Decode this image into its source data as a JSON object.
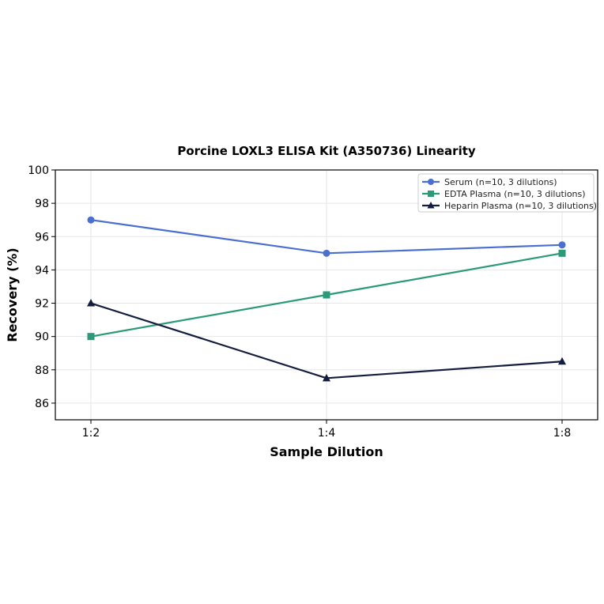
{
  "chart_data": {
    "type": "line",
    "title": "Porcine LOXL3 ELISA Kit (A350736) Linearity",
    "xlabel": "Sample Dilution",
    "ylabel": "Recovery (%)",
    "categories": [
      "1:2",
      "1:4",
      "1:8"
    ],
    "ylim": [
      85,
      100
    ],
    "yticks": [
      86,
      88,
      90,
      92,
      94,
      96,
      98,
      100
    ],
    "grid": true,
    "legend_position": "top-right",
    "series": [
      {
        "name": "Serum (n=10, 3 dilutions)",
        "values": [
          97,
          95,
          95.5
        ],
        "color": "#4a6fd0",
        "marker": "circle"
      },
      {
        "name": "EDTA Plasma (n=10, 3 dilutions)",
        "values": [
          90,
          92.5,
          95
        ],
        "color": "#2a9a78",
        "marker": "square"
      },
      {
        "name": "Heparin Plasma (n=10, 3 dilutions)",
        "values": [
          92,
          87.5,
          88.5
        ],
        "color": "#141d3d",
        "marker": "triangle"
      }
    ]
  }
}
